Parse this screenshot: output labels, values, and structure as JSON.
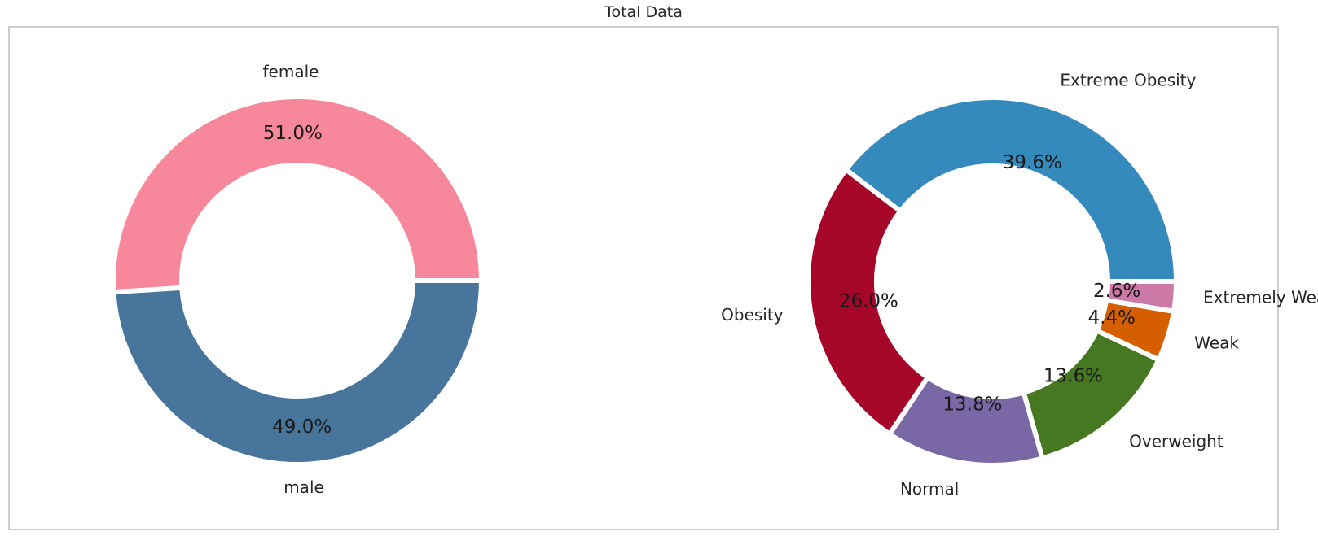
{
  "title": "Total Data",
  "chart_data": [
    {
      "type": "pie",
      "donut": true,
      "categories": [
        "female",
        "male"
      ],
      "values": [
        51.0,
        49.0
      ],
      "labels": [
        "51.0%",
        "49.0%"
      ],
      "colors": [
        "#f7889b",
        "#48759c"
      ]
    },
    {
      "type": "pie",
      "donut": true,
      "categories": [
        "Extreme Obesity",
        "Obesity",
        "Normal",
        "Overweight",
        "Weak",
        "Extremely Weak"
      ],
      "values": [
        39.6,
        26.0,
        13.8,
        13.6,
        4.4,
        2.6
      ],
      "labels": [
        "39.6%",
        "26.0%",
        "13.8%",
        "13.6%",
        "4.4%",
        "2.6%"
      ],
      "colors": [
        "#348abd",
        "#a60628",
        "#7a68a6",
        "#467821",
        "#d55e00",
        "#cc79a7"
      ]
    }
  ]
}
